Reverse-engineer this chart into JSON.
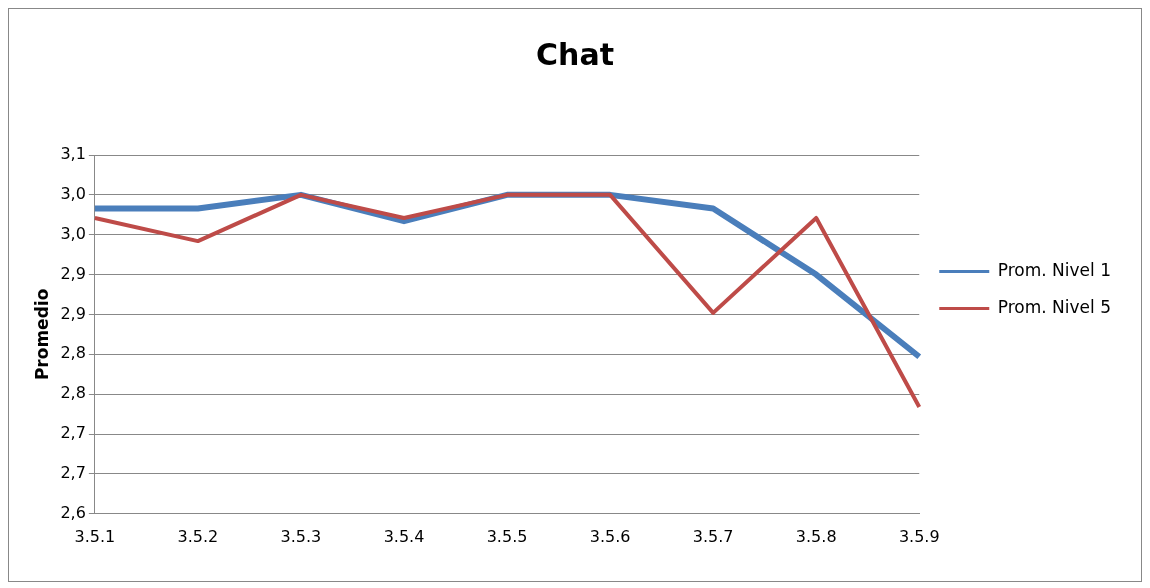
{
  "chart_data": {
    "type": "line",
    "title": "Chat",
    "ylabel": "Promedio",
    "categories": [
      "3.5.1",
      "3.5.2",
      "3.5.3",
      "3.5.4",
      "3.5.5",
      "3.5.6",
      "3.5.7",
      "3.5.8",
      "3.5.9"
    ],
    "series": [
      {
        "name": "Prom. Nivel 1",
        "color": "#4a7ebb",
        "values": [
          2.983,
          2.983,
          3.0,
          2.967,
          3.0,
          3.0,
          2.983,
          2.9,
          2.797
        ]
      },
      {
        "name": "Prom. Nivel 5",
        "color": "#be4b48",
        "values": [
          2.971,
          2.942,
          3.0,
          2.971,
          3.0,
          3.0,
          2.852,
          2.971,
          2.734
        ]
      }
    ],
    "ylim": [
      2.6,
      3.05
    ],
    "yticks": [
      {
        "value": 2.6,
        "label": "2,6"
      },
      {
        "value": 2.65,
        "label": "2,7"
      },
      {
        "value": 2.7,
        "label": "2,7"
      },
      {
        "value": 2.75,
        "label": "2,8"
      },
      {
        "value": 2.8,
        "label": "2,8"
      },
      {
        "value": 2.85,
        "label": "2,9"
      },
      {
        "value": 2.9,
        "label": "2,9"
      },
      {
        "value": 2.95,
        "label": "3,0"
      },
      {
        "value": 3.0,
        "label": "3,0"
      },
      {
        "value": 3.05,
        "label": "3,1"
      }
    ],
    "grid": "y",
    "legend": "right",
    "marker": "none",
    "line_style": "solid"
  }
}
